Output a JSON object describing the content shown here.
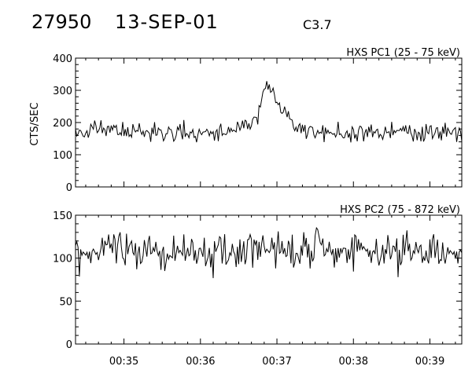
{
  "header": {
    "event_id": "27950",
    "date": "13-SEP-01",
    "goes_class": "C3.7"
  },
  "chart_data": [
    {
      "type": "line",
      "title": "HXS PC1 (25 - 75 keV)",
      "ylabel": "CTS/SEC",
      "xlabel": "",
      "xlim": [
        "00:34:22",
        "00:39:25"
      ],
      "ylim": [
        0,
        400
      ],
      "yticks": [
        0,
        100,
        200,
        300,
        400
      ],
      "xticks": [
        "00:35",
        "00:36",
        "00:37",
        "00:38",
        "00:39"
      ],
      "series": [
        {
          "x": [
            "00:34:22",
            "00:34:30",
            "00:34:40",
            "00:34:50",
            "00:35:00",
            "00:35:10",
            "00:35:20",
            "00:35:30",
            "00:35:40",
            "00:35:50",
            "00:36:00",
            "00:36:10",
            "00:36:20",
            "00:36:30",
            "00:36:40",
            "00:36:45",
            "00:36:48",
            "00:36:51",
            "00:36:54",
            "00:36:57",
            "00:37:00",
            "00:37:03",
            "00:37:06",
            "00:37:10",
            "00:37:15",
            "00:37:20",
            "00:37:30",
            "00:37:40",
            "00:37:50",
            "00:38:00",
            "00:38:10",
            "00:38:20",
            "00:38:30",
            "00:38:40",
            "00:38:50",
            "00:39:00",
            "00:39:10",
            "00:39:20",
            "00:39:25"
          ],
          "values": [
            170,
            165,
            185,
            178,
            170,
            175,
            172,
            168,
            170,
            166,
            172,
            168,
            170,
            175,
            195,
            225,
            275,
            305,
            315,
            310,
            260,
            245,
            225,
            205,
            185,
            175,
            170,
            165,
            172,
            168,
            170,
            165,
            170,
            172,
            168,
            170,
            175,
            170,
            168
          ]
        }
      ]
    },
    {
      "type": "line",
      "title": "HXS PC2 (75 - 872 keV)",
      "ylabel": "",
      "xlabel": "",
      "xlim": [
        "00:34:22",
        "00:39:25"
      ],
      "ylim": [
        0,
        150
      ],
      "yticks": [
        0,
        50,
        100,
        150
      ],
      "xticks": [
        "00:35",
        "00:36",
        "00:37",
        "00:38",
        "00:39"
      ],
      "series": [
        {
          "x": [
            "00:34:22",
            "00:34:40",
            "00:35:00",
            "00:35:20",
            "00:35:40",
            "00:36:00",
            "00:36:20",
            "00:36:40",
            "00:37:00",
            "00:37:20",
            "00:37:35",
            "00:37:50",
            "00:38:10",
            "00:38:30",
            "00:38:50",
            "00:39:10",
            "00:39:25"
          ],
          "values": [
            105,
            110,
            108,
            105,
            107,
            104,
            106,
            108,
            110,
            107,
            115,
            108,
            110,
            106,
            108,
            107,
            106
          ]
        }
      ]
    }
  ]
}
